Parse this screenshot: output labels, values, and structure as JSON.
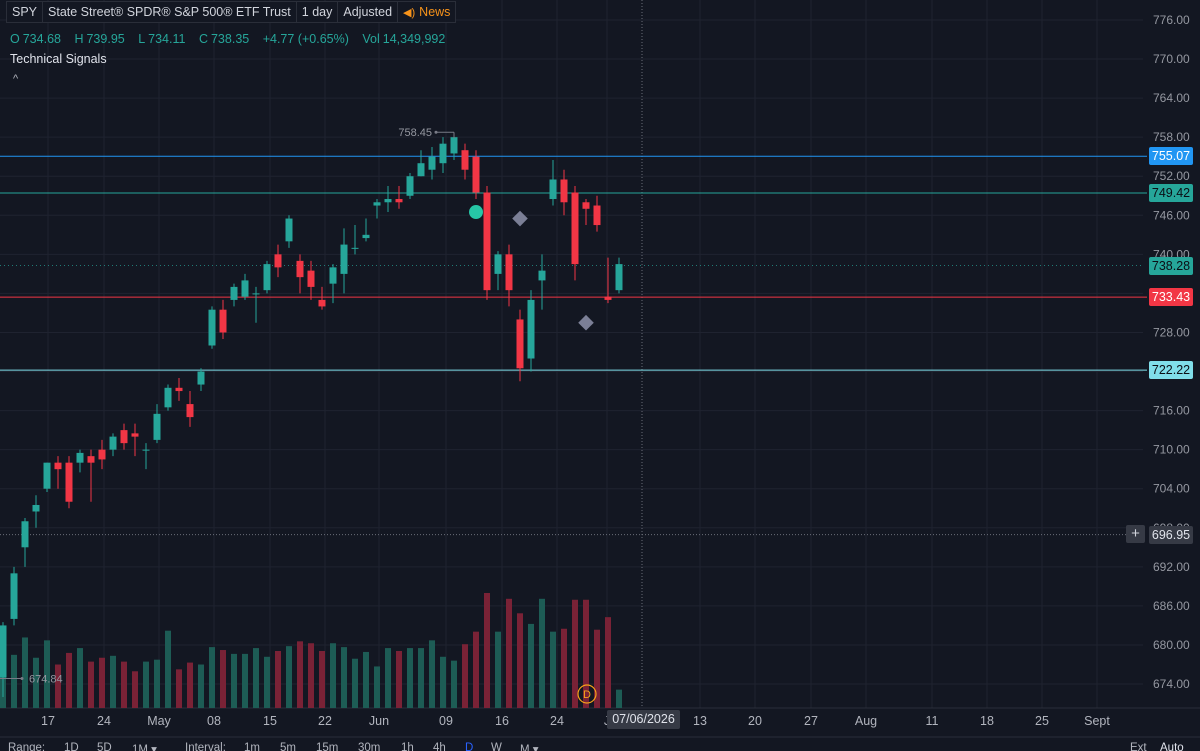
{
  "header": {
    "symbol": "SPY",
    "name": "State Street® SPDR® S&P 500® ETF Trust",
    "interval": "1 day",
    "adjustment": "Adjusted",
    "news_label": "News"
  },
  "ohlc": {
    "o_label": "O",
    "o": "734.68",
    "h_label": "H",
    "h": "739.95",
    "l_label": "L",
    "l": "734.11",
    "c_label": "C",
    "c": "738.35",
    "change": "+4.77 (+0.65%)",
    "vol_label": "Vol",
    "vol": "14,349,992"
  },
  "indicator_title": "Technical Signals",
  "collapse_icon": "^",
  "price_tags": [
    {
      "price": 755.07,
      "label": "755.07",
      "color": "#2196f3"
    },
    {
      "price": 749.42,
      "label": "749.42",
      "color": "#26a69a"
    },
    {
      "price": 738.28,
      "label": "738.28",
      "color": "#26a69a"
    },
    {
      "price": 733.43,
      "label": "733.43",
      "color": "#f23645"
    },
    {
      "price": 722.22,
      "label": "722.22",
      "color": "#80deea"
    },
    {
      "price": 696.95,
      "label": "696.95",
      "color": "#363a45"
    }
  ],
  "crosshair_plus": "+",
  "crosshair_date": "07/06/2026",
  "bottom_bar": {
    "range_label": "Range:",
    "ranges": [
      "1D",
      "5D",
      "1M ▾"
    ],
    "interval_label": "Interval:",
    "intervals": [
      "1m",
      "5m",
      "15m",
      "30m",
      "1h",
      "4h",
      "D",
      "W",
      "M ▾"
    ],
    "ext": "Ext",
    "auto": "Auto"
  },
  "chart_data": {
    "type": "candlestick",
    "y_range": [
      671,
      778
    ],
    "y_ticks": [
      "776.00",
      "770.00",
      "764.00",
      "758.00",
      "752.00",
      "746.00",
      "740.00",
      "734.00",
      "728.00",
      "722.00",
      "716.00",
      "710.00",
      "704.00",
      "698.00",
      "692.00",
      "686.00",
      "680.00",
      "674.00"
    ],
    "x_ticks": [
      "17",
      "24",
      "May",
      "08",
      "15",
      "22",
      "Jun",
      "09",
      "16",
      "24",
      "J",
      "13",
      "20",
      "27",
      "Aug",
      "11",
      "18",
      "25",
      "Sept"
    ],
    "annotations": [
      {
        "label": "758.45",
        "price": 758.45
      },
      {
        "label": "674.84",
        "price": 674.84
      }
    ],
    "lines": [
      {
        "price": 755.07,
        "color": "#2196f3"
      },
      {
        "price": 749.42,
        "color": "#26a69a"
      },
      {
        "price": 733.43,
        "color": "#f23645"
      },
      {
        "price": 722.22,
        "color": "#80deea"
      }
    ],
    "candles": [
      {
        "o": 675.0,
        "h": 683.5,
        "l": 672.0,
        "c": 683.0,
        "v": 84
      },
      {
        "o": 684.0,
        "h": 692.0,
        "l": 683.0,
        "c": 691.0,
        "v": 55
      },
      {
        "o": 695.0,
        "h": 699.5,
        "l": 692.0,
        "c": 699.0,
        "v": 73
      },
      {
        "o": 700.5,
        "h": 703.0,
        "l": 698.0,
        "c": 701.5,
        "v": 52
      },
      {
        "o": 704.0,
        "h": 708.0,
        "l": 703.5,
        "c": 708.0,
        "v": 70
      },
      {
        "o": 708.0,
        "h": 709.0,
        "l": 704.0,
        "c": 707.0,
        "v": 45
      },
      {
        "o": 708.0,
        "h": 709.0,
        "l": 701.0,
        "c": 702.0,
        "v": 57
      },
      {
        "o": 708.0,
        "h": 710.0,
        "l": 706.5,
        "c": 709.5,
        "v": 62
      },
      {
        "o": 709.0,
        "h": 710.0,
        "l": 702.0,
        "c": 708.0,
        "v": 48
      },
      {
        "o": 710.0,
        "h": 711.5,
        "l": 707.0,
        "c": 708.5,
        "v": 52
      },
      {
        "o": 710.0,
        "h": 712.5,
        "l": 709.0,
        "c": 712.0,
        "v": 54
      },
      {
        "o": 713.0,
        "h": 714.0,
        "l": 710.0,
        "c": 711.0,
        "v": 48
      },
      {
        "o": 712.5,
        "h": 714.0,
        "l": 709.0,
        "c": 712.0,
        "v": 38
      },
      {
        "o": 710.0,
        "h": 711.0,
        "l": 707.0,
        "c": 710.0,
        "v": 48
      },
      {
        "o": 711.5,
        "h": 717.0,
        "l": 711.0,
        "c": 715.5,
        "v": 50
      },
      {
        "o": 716.5,
        "h": 720.0,
        "l": 716.0,
        "c": 719.5,
        "v": 80
      },
      {
        "o": 719.5,
        "h": 721.0,
        "l": 717.5,
        "c": 719.0,
        "v": 40
      },
      {
        "o": 717.0,
        "h": 719.0,
        "l": 713.5,
        "c": 715.0,
        "v": 47
      },
      {
        "o": 720.0,
        "h": 722.5,
        "l": 719.0,
        "c": 722.0,
        "v": 45
      },
      {
        "o": 726.0,
        "h": 732.0,
        "l": 725.5,
        "c": 731.5,
        "v": 63
      },
      {
        "o": 731.5,
        "h": 733.0,
        "l": 727.0,
        "c": 728.0,
        "v": 60
      },
      {
        "o": 733.0,
        "h": 735.5,
        "l": 732.0,
        "c": 735.0,
        "v": 56
      },
      {
        "o": 733.5,
        "h": 737.0,
        "l": 733.0,
        "c": 736.0,
        "v": 56
      },
      {
        "o": 734.0,
        "h": 735.0,
        "l": 729.5,
        "c": 734.0,
        "v": 62
      },
      {
        "o": 734.5,
        "h": 739.0,
        "l": 734.0,
        "c": 738.5,
        "v": 53
      },
      {
        "o": 740.0,
        "h": 741.5,
        "l": 736.5,
        "c": 738.0,
        "v": 59
      },
      {
        "o": 742.0,
        "h": 746.0,
        "l": 741.0,
        "c": 745.5,
        "v": 64
      },
      {
        "o": 739.0,
        "h": 740.0,
        "l": 734.0,
        "c": 736.5,
        "v": 69
      },
      {
        "o": 737.5,
        "h": 739.0,
        "l": 733.0,
        "c": 735.0,
        "v": 67
      },
      {
        "o": 733.0,
        "h": 735.0,
        "l": 731.5,
        "c": 732.0,
        "v": 59
      },
      {
        "o": 735.5,
        "h": 738.5,
        "l": 732.5,
        "c": 738.0,
        "v": 67
      },
      {
        "o": 737.0,
        "h": 744.0,
        "l": 734.0,
        "c": 741.5,
        "v": 63
      },
      {
        "o": 741.0,
        "h": 744.5,
        "l": 740.0,
        "c": 741.0,
        "v": 51
      },
      {
        "o": 742.5,
        "h": 745.5,
        "l": 742.0,
        "c": 743.0,
        "v": 58
      },
      {
        "o": 747.5,
        "h": 748.5,
        "l": 745.5,
        "c": 748.0,
        "v": 43
      },
      {
        "o": 748.0,
        "h": 750.5,
        "l": 746.5,
        "c": 748.5,
        "v": 62
      },
      {
        "o": 748.5,
        "h": 750.5,
        "l": 747.0,
        "c": 748.0,
        "v": 59
      },
      {
        "o": 749.0,
        "h": 752.5,
        "l": 748.5,
        "c": 752.0,
        "v": 62
      },
      {
        "o": 752.0,
        "h": 756.0,
        "l": 752.0,
        "c": 754.0,
        "v": 62
      },
      {
        "o": 753.0,
        "h": 756.5,
        "l": 751.5,
        "c": 755.0,
        "v": 70
      },
      {
        "o": 754.0,
        "h": 758.0,
        "l": 752.5,
        "c": 757.0,
        "v": 53
      },
      {
        "o": 755.5,
        "h": 758.5,
        "l": 754.5,
        "c": 758.0,
        "v": 49
      },
      {
        "o": 756.0,
        "h": 757.0,
        "l": 751.5,
        "c": 753.0,
        "v": 66
      },
      {
        "o": 755.0,
        "h": 756.0,
        "l": 748.5,
        "c": 749.5,
        "v": 79
      },
      {
        "o": 749.5,
        "h": 750.5,
        "l": 733.0,
        "c": 734.5,
        "v": 119
      },
      {
        "o": 737.0,
        "h": 740.5,
        "l": 734.5,
        "c": 740.0,
        "v": 79
      },
      {
        "o": 740.0,
        "h": 741.5,
        "l": 732.0,
        "c": 734.5,
        "v": 113
      },
      {
        "o": 730.0,
        "h": 731.5,
        "l": 720.5,
        "c": 722.5,
        "v": 98
      },
      {
        "o": 724.0,
        "h": 734.5,
        "l": 722.0,
        "c": 733.0,
        "v": 87
      },
      {
        "o": 736.0,
        "h": 740.0,
        "l": 731.5,
        "c": 737.5,
        "v": 113
      },
      {
        "o": 748.5,
        "h": 754.5,
        "l": 747.5,
        "c": 751.5,
        "v": 79
      },
      {
        "o": 751.5,
        "h": 753.0,
        "l": 746.0,
        "c": 748.0,
        "v": 82
      },
      {
        "o": 749.5,
        "h": 750.5,
        "l": 736.0,
        "c": 738.5,
        "v": 112
      },
      {
        "o": 748.0,
        "h": 748.5,
        "l": 744.5,
        "c": 747.0,
        "v": 112
      },
      {
        "o": 747.5,
        "h": 749.0,
        "l": 743.5,
        "c": 744.5,
        "v": 81
      },
      {
        "o": 733.5,
        "h": 739.5,
        "l": 732.5,
        "c": 733.0,
        "v": 94
      },
      {
        "o": 734.5,
        "h": 739.5,
        "l": 734.0,
        "c": 738.5,
        "v": 19
      }
    ],
    "signals": [
      {
        "type": "circle",
        "index": 43,
        "price": 746.5,
        "color": "#26c6a6"
      },
      {
        "type": "diamond",
        "index": 47,
        "price": 745.5,
        "color": "#7b7f96"
      },
      {
        "type": "diamond",
        "index": 53,
        "price": 729.5,
        "color": "#7b7f96"
      }
    ],
    "last_candle_marker": "D"
  }
}
